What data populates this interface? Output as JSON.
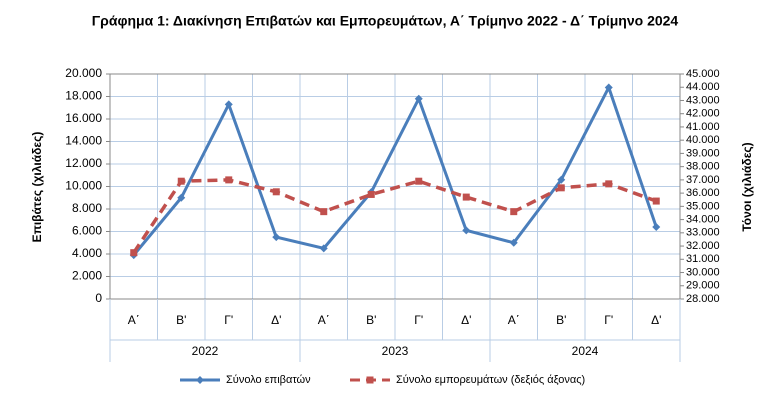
{
  "chart_data": {
    "type": "line",
    "title": "Γράφημα 1: Διακίνηση Επιβατών και Εμπορευμάτων, Α΄ Τρίμηνο 2022 - Δ΄ Τρίμηνο 2024",
    "y_label": "Επιβάτες  (χιλιάδες)",
    "y2_label": "Τόνοι  (χιλιάδες)",
    "categories": [
      "Α΄",
      "Β'",
      "Γ'",
      "Δ'",
      "Α΄",
      "Β'",
      "Γ'",
      "Δ'",
      "Α΄",
      "Β'",
      "Γ'",
      "Δ'"
    ],
    "years": [
      "2022",
      "2023",
      "2024"
    ],
    "series": [
      {
        "name": "Σύνολο επιβατών",
        "color": "#4a7ebb",
        "values": [
          3900,
          9000,
          17300,
          5500,
          4500,
          9500,
          17800,
          6100,
          5000,
          10600,
          18800,
          6400
        ]
      },
      {
        "name": "Σύνολο εμπορευμάτων (δεξιός άξονας)",
        "color": "#c0504d",
        "axis": "y2",
        "values": [
          31500,
          36900,
          37000,
          36100,
          34600,
          35900,
          36900,
          35700,
          34600,
          36400,
          36700,
          35400
        ]
      }
    ],
    "ylim": [
      0,
      20000
    ],
    "yticks": [
      0,
      {
        "value": 2000,
        "label": "2.000"
      },
      {
        "value": 4000,
        "label": "4.000"
      },
      {
        "value": 6000,
        "label": "6.000"
      },
      {
        "value": 8000,
        "label": "8.000"
      },
      {
        "value": 10000,
        "label": "10.000"
      },
      {
        "value": 12000,
        "label": "12.000"
      },
      {
        "value": 14000,
        "label": "14.000"
      },
      {
        "value": 16000,
        "label": "16.000"
      },
      {
        "value": 18000,
        "label": "18.000"
      },
      {
        "value": 20000,
        "label": "20.000"
      }
    ],
    "y2lim": [
      28000,
      45000
    ],
    "y2ticks": [
      {
        "value": 28000,
        "label": "28.000"
      },
      {
        "value": 29000,
        "label": "29.000"
      },
      {
        "value": 30000,
        "label": "30.000"
      },
      {
        "value": 31000,
        "label": "31.000"
      },
      {
        "value": 32000,
        "label": "32.000"
      },
      {
        "value": 33000,
        "label": "33.000"
      },
      {
        "value": 34000,
        "label": "34.000"
      },
      {
        "value": 35000,
        "label": "35.000"
      },
      {
        "value": 36000,
        "label": "36.000"
      },
      {
        "value": 37000,
        "label": "37.000"
      },
      {
        "value": 38000,
        "label": "38.000"
      },
      {
        "value": 39000,
        "label": "39.000"
      },
      {
        "value": 40000,
        "label": "40.000"
      },
      {
        "value": 41000,
        "label": "41.000"
      },
      {
        "value": 42000,
        "label": "42.000"
      },
      {
        "value": 43000,
        "label": "43.000"
      },
      {
        "value": 44000,
        "label": "44.000"
      },
      {
        "value": 45000,
        "label": "45.000"
      }
    ],
    "grid": true,
    "legend": "bottom"
  }
}
